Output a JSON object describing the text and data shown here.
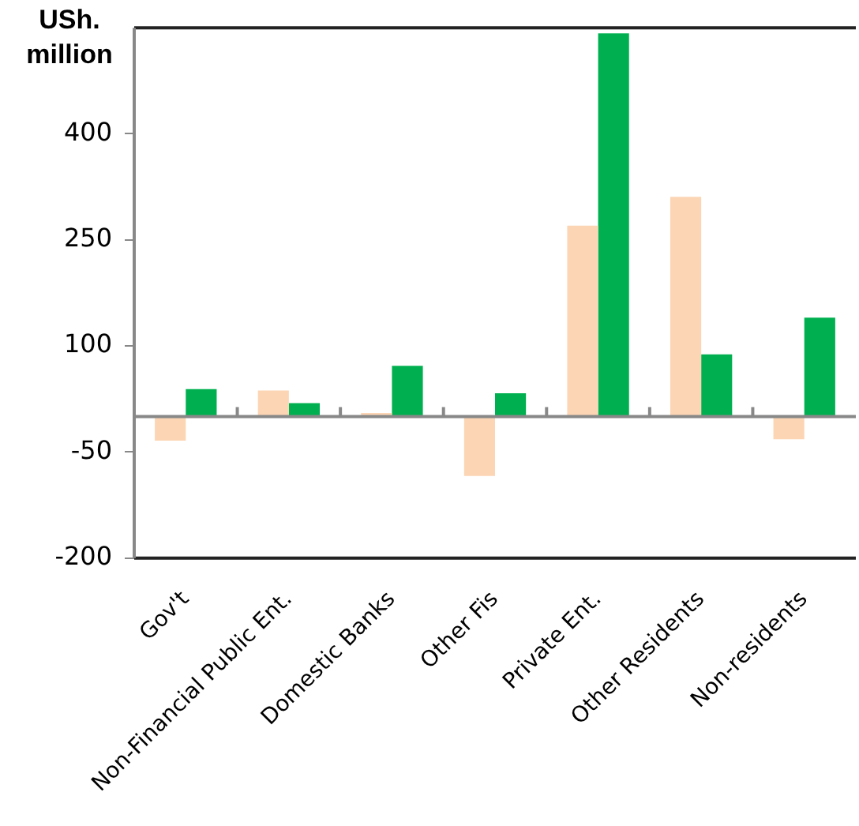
{
  "chart_data": {
    "type": "bar",
    "ylabel": "USh. million",
    "categories": [
      "Gov't",
      "Non-Financial Public Ent.",
      "Domestic Banks",
      "Other Fis",
      "Private Ent.",
      "Other Residents",
      "Non-residents"
    ],
    "series": [
      {
        "color": "#fcd5b4",
        "values": [
          -34,
          37,
          5,
          -84,
          270,
          311,
          -32
        ]
      },
      {
        "color": "#00b050",
        "values": [
          39,
          19,
          72,
          33,
          542,
          88,
          140
        ]
      }
    ],
    "ylim": [
      -200,
      550
    ],
    "yticks": [
      -200,
      -50,
      100,
      250,
      400
    ],
    "grid": false,
    "legend": false
  }
}
